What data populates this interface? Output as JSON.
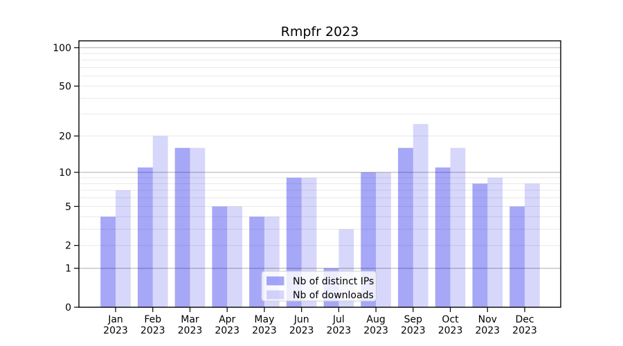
{
  "chart_data": {
    "type": "bar",
    "title": "Rmpfr 2023",
    "categories": [
      "Jan",
      "Feb",
      "Mar",
      "Apr",
      "May",
      "Jun",
      "Jul",
      "Aug",
      "Sep",
      "Oct",
      "Nov",
      "Dec"
    ],
    "x_tick_year": "2023",
    "series": [
      {
        "name": "Nb of distinct IPs",
        "color": "#0000e858",
        "values": [
          4,
          11,
          16,
          5,
          4,
          9,
          1,
          10,
          16,
          11,
          8,
          5
        ]
      },
      {
        "name": "Nb of downloads",
        "color": "#0000e828",
        "values": [
          7,
          20,
          16,
          5,
          4,
          9,
          3,
          10,
          25,
          16,
          9,
          8
        ]
      }
    ],
    "y_axis": {
      "scale": "log1p",
      "tick_values": [
        100,
        50,
        20,
        10,
        5,
        2,
        1,
        0
      ],
      "major_gridlines": [
        1,
        10,
        100
      ],
      "minor_gridlines": [
        2,
        3,
        4,
        5,
        6,
        7,
        8,
        9,
        20,
        30,
        40,
        50,
        60,
        70,
        80,
        90
      ],
      "ylim": [
        0,
        113
      ]
    },
    "legend": {
      "position": "inside-bottom-center",
      "entries": [
        "Nb of distinct IPs",
        "Nb of downloads"
      ]
    },
    "grid": true,
    "xlabel": "",
    "ylabel": ""
  },
  "colors": {
    "background": "#ffffff",
    "bar_distinct_ips": "#0000e858",
    "bar_downloads": "#0000e828",
    "major_gridline": "#b3b3b3",
    "minor_gridline": "#e8e8e8",
    "axis": "#000000",
    "legend_border": "#cccccc",
    "legend_background": "#ffffffcc"
  }
}
